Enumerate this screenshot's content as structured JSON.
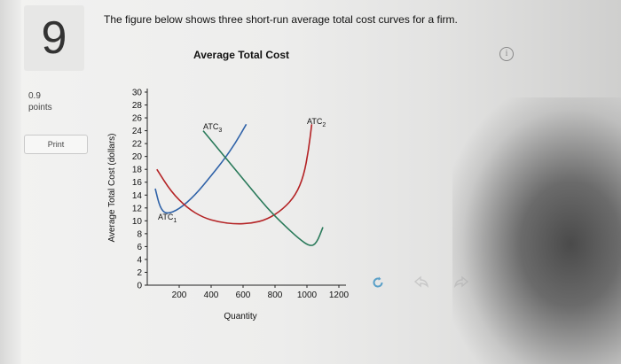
{
  "question": {
    "number": "9",
    "points_value": "0.9",
    "points_label": "points",
    "print_label": "Print",
    "text": "The figure below shows three short-run average total cost curves for a firm."
  },
  "info_icon": "info-icon",
  "nav": {
    "refresh_icon": "refresh-icon",
    "prev_icon": "back-arrow-icon",
    "next_icon": "forward-arrow-icon"
  },
  "chart_data": {
    "type": "line",
    "title": "Average Total Cost",
    "xlabel": "Quantity",
    "ylabel": "Average Total Cost (dollars)",
    "xlim": [
      0,
      1200
    ],
    "ylim": [
      0,
      30
    ],
    "xticks": [
      "200",
      "400",
      "600",
      "800",
      "1000",
      "1200"
    ],
    "yticks": [
      "0",
      "2",
      "4",
      "6",
      "8",
      "10",
      "12",
      "14",
      "16",
      "18",
      "20",
      "22",
      "24",
      "26",
      "28",
      "30"
    ],
    "series": [
      {
        "name": "ATC1",
        "label_main": "ATC",
        "label_sub": "1",
        "color": "#2f62a8",
        "x": [
          50,
          80,
          120,
          200,
          300,
          400,
          480,
          550,
          620
        ],
        "y": [
          15,
          12,
          11,
          11.8,
          14,
          17,
          19.5,
          22,
          25
        ]
      },
      {
        "name": "ATC2",
        "label_main": "ATC",
        "label_sub": "2",
        "color": "#b42325",
        "x": [
          60,
          150,
          250,
          350,
          450,
          550,
          650,
          750,
          850,
          930,
          980,
          1010,
          1030
        ],
        "y": [
          18,
          14.5,
          12,
          10.5,
          9.8,
          9.5,
          9.6,
          10.2,
          11.8,
          14,
          17,
          21,
          25
        ]
      },
      {
        "name": "ATC3",
        "label_main": "ATC",
        "label_sub": "3",
        "color": "#2a7a5a",
        "x": [
          350,
          450,
          550,
          650,
          750,
          850,
          950,
          1020,
          1060,
          1100
        ],
        "y": [
          24,
          21,
          18,
          15,
          12,
          9.5,
          7.2,
          6,
          6.5,
          9
        ]
      }
    ]
  }
}
